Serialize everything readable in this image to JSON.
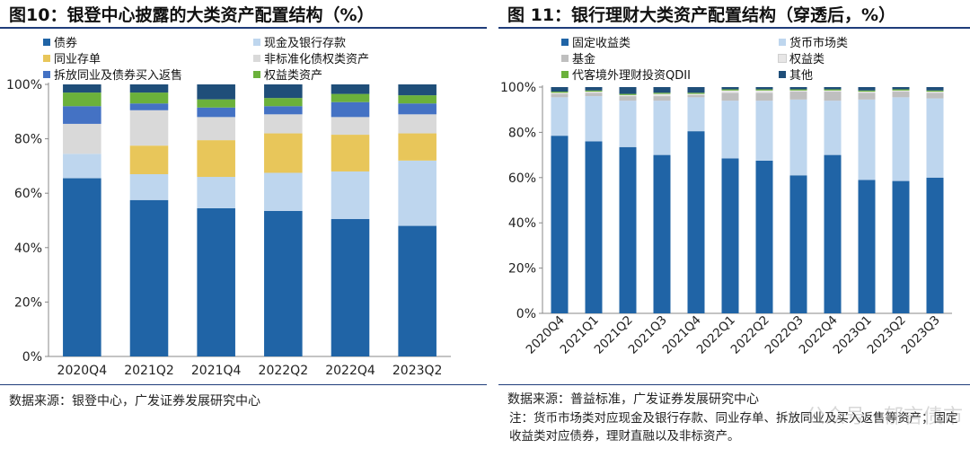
{
  "left": {
    "title": "图10：银登中心披露的大类资产配置结构（%）",
    "source": "数据来源：银登中心，广发证券发展研究中心",
    "chart_data": {
      "type": "bar",
      "stacked": true,
      "categories": [
        "2020Q4",
        "2021Q2",
        "2021Q4",
        "2022Q2",
        "2022Q4",
        "2023Q2"
      ],
      "ylim": [
        0,
        100
      ],
      "yticks": [
        "0%",
        "20%",
        "40%",
        "60%",
        "80%",
        "100%"
      ],
      "legend_placement": "top",
      "series": [
        {
          "name": "债券",
          "color": "#2064a6",
          "values": [
            65.5,
            57.5,
            54.5,
            53.5,
            50.5,
            48
          ]
        },
        {
          "name": "现金及银行存款",
          "color": "#bed6ee",
          "values": [
            9,
            9.5,
            11.5,
            14,
            17.5,
            24
          ]
        },
        {
          "name": "同业存单",
          "color": "#e8c65a",
          "values": [
            0,
            10.5,
            13.5,
            14.5,
            13.5,
            10
          ]
        },
        {
          "name": "非标准化债权类资产",
          "color": "#d9d9d9",
          "values": [
            11,
            13,
            8.5,
            7,
            6.5,
            7
          ]
        },
        {
          "name": "拆放同业及债券买入返售",
          "color": "#4472c4",
          "values": [
            6.5,
            2.5,
            3.5,
            3,
            5.5,
            4
          ]
        },
        {
          "name": "权益类资产",
          "color": "#6bb13b",
          "values": [
            5,
            4,
            3,
            3,
            3,
            3
          ]
        },
        {
          "name": "",
          "color": "#1f4e79",
          "values": [
            3,
            3,
            5.5,
            5,
            3.5,
            4
          ]
        }
      ]
    }
  },
  "right": {
    "title": "图 11：银行理财大类资产配置结构（穿透后，%）",
    "source": "数据来源：普益标准，广发证券发展研究中心",
    "note": "注：货币市场类对应现金及银行存款、同业存单、拆放同业及买入返售等资产；固定收益类对应债券，理财直融以及非标资产。",
    "watermark": "公众号 · 郁言债市",
    "chart_data": {
      "type": "bar",
      "stacked": true,
      "categories": [
        "2020Q4",
        "2021Q1",
        "2021Q2",
        "2021Q3",
        "2021Q4",
        "2022Q1",
        "2022Q2",
        "2022Q3",
        "2022Q4",
        "2023Q1",
        "2023Q2",
        "2023Q3"
      ],
      "ylim": [
        0,
        100
      ],
      "yticks": [
        "0%",
        "20%",
        "40%",
        "60%",
        "80%",
        "100%"
      ],
      "legend_placement": "top",
      "series": [
        {
          "name": "固定收益类",
          "color": "#2064a6",
          "values": [
            78.5,
            76,
            73.5,
            70,
            80.5,
            68.5,
            67.5,
            61,
            70,
            59,
            58.5,
            60
          ]
        },
        {
          "name": "货币市场类",
          "color": "#bed6ee",
          "values": [
            17,
            20,
            20.5,
            24,
            15,
            25.5,
            26.5,
            33.5,
            24,
            35.5,
            37,
            35
          ]
        },
        {
          "name": "基金",
          "color": "#bfbfbf",
          "values": [
            1.5,
            1.5,
            2,
            2,
            1,
            3.5,
            3.5,
            3.5,
            4,
            3,
            2.5,
            2.5
          ]
        },
        {
          "name": "权益类",
          "color": "#e7e6e6",
          "values": [
            0.5,
            0.5,
            0.5,
            1,
            0.5,
            1,
            1,
            0.5,
            0.5,
            0.5,
            0.5,
            0.5
          ]
        },
        {
          "name": "代客境外理财投资QDII",
          "color": "#6bb13b",
          "values": [
            0.5,
            0.5,
            0.5,
            0.5,
            0.5,
            0.5,
            0.5,
            0.5,
            0.5,
            0.5,
            0.5,
            0.5
          ]
        },
        {
          "name": "其他",
          "color": "#1f4e79",
          "values": [
            2,
            1.5,
            3,
            2.5,
            2.5,
            1,
            1,
            1,
            1,
            1.5,
            1,
            1.5
          ]
        }
      ]
    }
  }
}
